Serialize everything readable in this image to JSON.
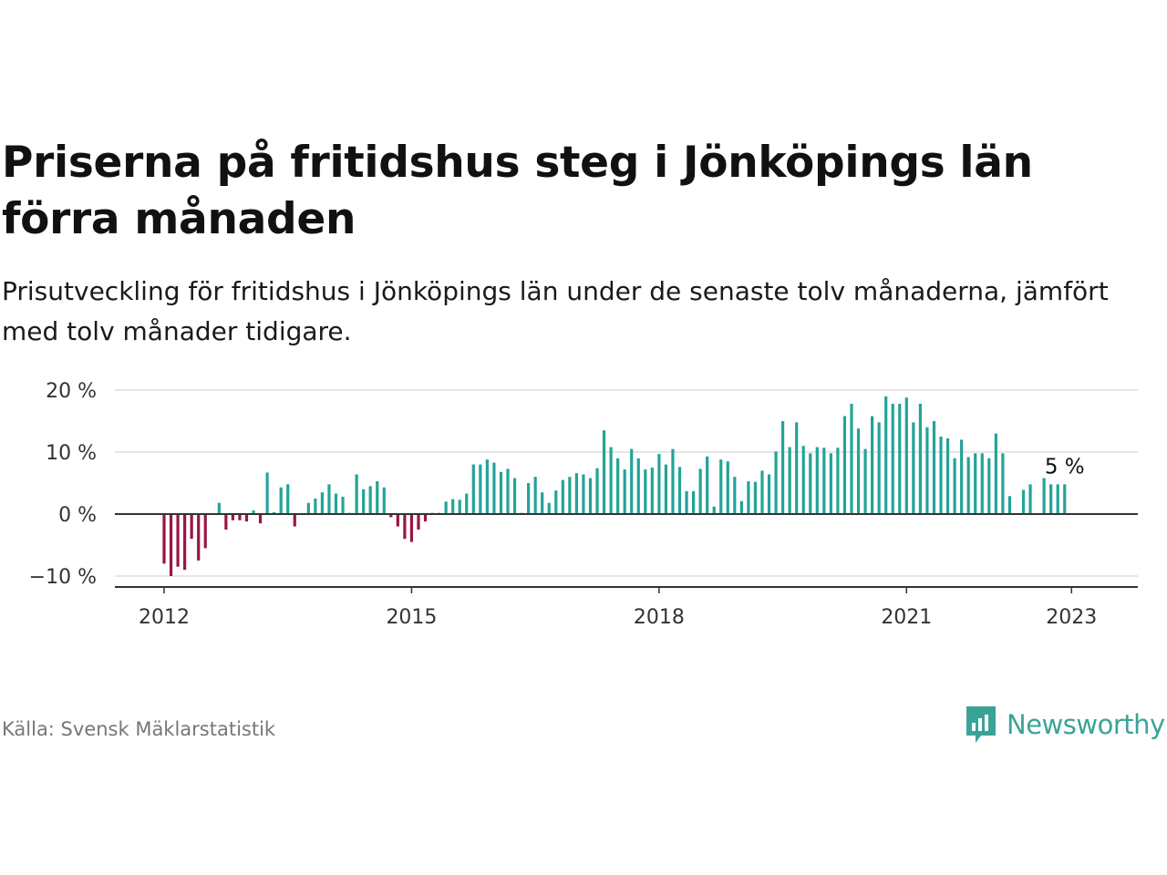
{
  "title": "Priserna på fritidshus steg i Jönköpings län förra månaden",
  "subtitle": "Prisutveckling för fritidshus i Jönköpings län under de senaste tolv månaderna, jämfört med tolv månader tidigare.",
  "source": "Källa: Svensk Mäklarstatistik",
  "brand": "Newsworthy",
  "colors": {
    "positive": "#23a399",
    "negative": "#9b1446",
    "brand": "#3aa397",
    "grid": "#dddddd",
    "baseline": "#333333"
  },
  "chart_data": {
    "type": "bar",
    "x_start": "2012-01",
    "x_end": "2023-01",
    "x_ticks": [
      "2012",
      "2015",
      "2018",
      "2021",
      "2023"
    ],
    "y_ticks": [
      "20 %",
      "10 %",
      "0 %",
      "−10 %"
    ],
    "ylim": [
      -11,
      21
    ],
    "grid": true,
    "annotation": "5 %",
    "values": [
      -8,
      -10,
      -8.5,
      -9,
      -4,
      -7.5,
      -5.5,
      null,
      1.8,
      -2.5,
      -1,
      -1,
      -1.2,
      0.6,
      -1.5,
      6.7,
      0.3,
      4.3,
      4.8,
      -2,
      null,
      1.8,
      2.5,
      3.5,
      4.8,
      3.3,
      2.8,
      0.2,
      6.4,
      4,
      4.5,
      5.3,
      4.3,
      -0.5,
      -2,
      -4,
      -4.5,
      -2.5,
      -1.2,
      0.2,
      0.2,
      2,
      2.4,
      2.3,
      3.3,
      8,
      8,
      8.8,
      8.3,
      6.8,
      7.3,
      5.8,
      0.2,
      5,
      6,
      3.5,
      1.8,
      3.8,
      5.5,
      6,
      6.6,
      6.4,
      5.8,
      7.4,
      13.5,
      10.8,
      9,
      7.2,
      10.5,
      9,
      7.2,
      7.5,
      9.7,
      8,
      10.5,
      7.6,
      3.7,
      3.7,
      7.3,
      9.3,
      1.2,
      8.8,
      8.5,
      6,
      2.1,
      5.3,
      5.2,
      7,
      6.4,
      10.1,
      15,
      10.8,
      14.8,
      11,
      9.8,
      10.8,
      10.7,
      9.8,
      10.7,
      15.8,
      17.8,
      13.8,
      10.5,
      15.8,
      14.8,
      19,
      17.8,
      17.8,
      18.8,
      14.8,
      17.8,
      14,
      15,
      12.5,
      12.2,
      9,
      12,
      9.2,
      9.8,
      9.8,
      9,
      13,
      9.8,
      2.9,
      null,
      3.9,
      4.8,
      null,
      5.8,
      4.8,
      4.8,
      4.8
    ]
  }
}
